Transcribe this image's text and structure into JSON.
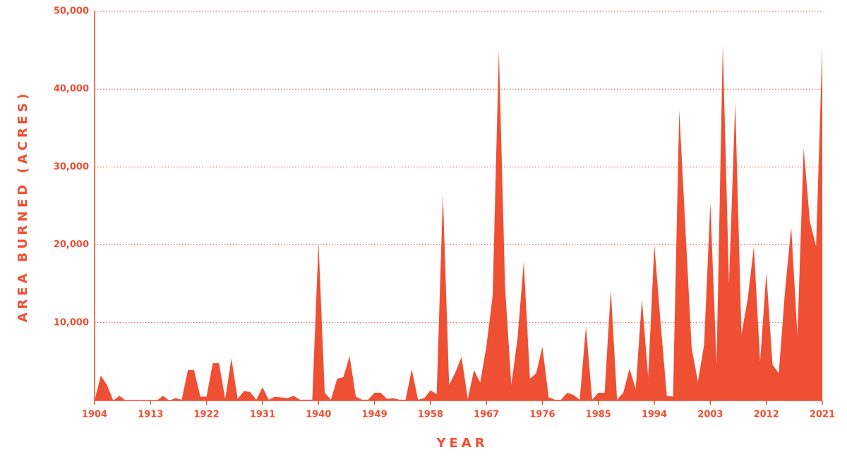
{
  "chart_data": {
    "type": "area",
    "x_label": "YEAR",
    "y_label": "AREA BURNED (ACRES)",
    "color": "#ef4f33",
    "grid": true,
    "x": [
      1904,
      1905,
      1906,
      1907,
      1908,
      1909,
      1910,
      1911,
      1912,
      1913,
      1914,
      1915,
      1916,
      1917,
      1918,
      1919,
      1920,
      1921,
      1922,
      1923,
      1924,
      1925,
      1926,
      1927,
      1928,
      1929,
      1930,
      1931,
      1932,
      1933,
      1934,
      1935,
      1936,
      1937,
      1938,
      1939,
      1940,
      1941,
      1942,
      1943,
      1944,
      1945,
      1946,
      1947,
      1948,
      1949,
      1950,
      1951,
      1952,
      1953,
      1954,
      1955,
      1956,
      1957,
      1958,
      1959,
      1960,
      1961,
      1962,
      1963,
      1964,
      1965,
      1966,
      1967,
      1968,
      1969,
      1970,
      1971,
      1972,
      1973,
      1974,
      1975,
      1976,
      1977,
      1978,
      1979,
      1980,
      1981,
      1982,
      1983,
      1984,
      1985,
      1986,
      1987,
      1988,
      1989,
      1990,
      1991,
      1992,
      1993,
      1994,
      1995,
      1996,
      1997,
      1998,
      1999,
      2000,
      2001,
      2002,
      2003,
      2004,
      2005,
      2006,
      2007,
      2008,
      2009,
      2010,
      2011,
      2012,
      2013,
      2014,
      2015,
      2016,
      2017,
      2018,
      2019,
      2020,
      2021
    ],
    "values": [
      0,
      3200,
      2000,
      0,
      600,
      0,
      0,
      0,
      0,
      0,
      0,
      600,
      0,
      300,
      100,
      3900,
      3900,
      500,
      500,
      4800,
      4800,
      200,
      5400,
      200,
      1200,
      1100,
      100,
      1700,
      100,
      500,
      400,
      300,
      600,
      100,
      100,
      100,
      20300,
      1000,
      100,
      2800,
      3000,
      5700,
      500,
      100,
      100,
      1000,
      1000,
      200,
      300,
      100,
      100,
      4000,
      100,
      300,
      1300,
      800,
      26500,
      2000,
      3600,
      5600,
      200,
      3900,
      2300,
      7000,
      13500,
      45000,
      14500,
      2000,
      8000,
      17800,
      2800,
      3500,
      6900,
      400,
      100,
      100,
      1000,
      700,
      100,
      9500,
      100,
      1000,
      1000,
      14200,
      100,
      1000,
      4100,
      1500,
      13000,
      3000,
      20000,
      10000,
      600,
      500,
      37300,
      22000,
      6700,
      2400,
      7200,
      25400,
      4700,
      45700,
      15000,
      38300,
      8500,
      13000,
      19800,
      5000,
      16400,
      4600,
      3500,
      14000,
      22300,
      8300,
      32400,
      23000,
      19800,
      45500
    ],
    "xlim": [
      1904,
      2021
    ],
    "xticks": [
      1904,
      1913,
      1922,
      1931,
      1940,
      1949,
      1958,
      1967,
      1976,
      1985,
      1994,
      2003,
      2012,
      2021
    ],
    "ylim": [
      0,
      50000
    ],
    "yticks": [
      {
        "value": 10000,
        "label": "10,000"
      },
      {
        "value": 20000,
        "label": "20,000"
      },
      {
        "value": 30000,
        "label": "30,000"
      },
      {
        "value": 40000,
        "label": "40,000"
      },
      {
        "value": 50000,
        "label": "50,000"
      }
    ]
  }
}
